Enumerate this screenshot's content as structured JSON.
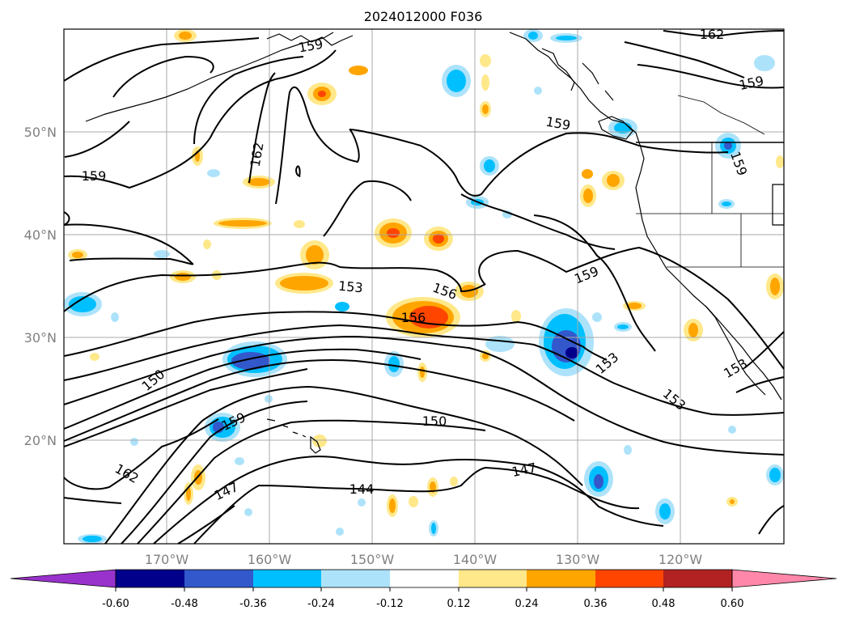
{
  "map": {
    "title": "2024012000 F036",
    "lat_labels": [
      "50°N",
      "40°N",
      "30°N",
      "20°N"
    ],
    "lon_labels": [
      "170°W",
      "160°W",
      "150°W",
      "140°W",
      "130°W",
      "120°W"
    ],
    "contour_labels": [
      "162",
      "159",
      "159",
      "162",
      "159",
      "159",
      "159",
      "153",
      "156",
      "156",
      "159",
      "150",
      "153",
      "153",
      "153",
      "150",
      "159",
      "162",
      "147",
      "144",
      "147"
    ],
    "colorbar": {
      "ticks": [
        "-0.60",
        "-0.48",
        "-0.36",
        "-0.24",
        "-0.12",
        "0.12",
        "0.24",
        "0.36",
        "0.48",
        "0.60"
      ],
      "colors": [
        "#9932cc",
        "#00008b",
        "#3358cc",
        "#00bfff",
        "#ade3fa",
        "#ffffff",
        "#ffe88a",
        "#ffa500",
        "#ff4500",
        "#b22222",
        "#ff88aa"
      ]
    }
  }
}
